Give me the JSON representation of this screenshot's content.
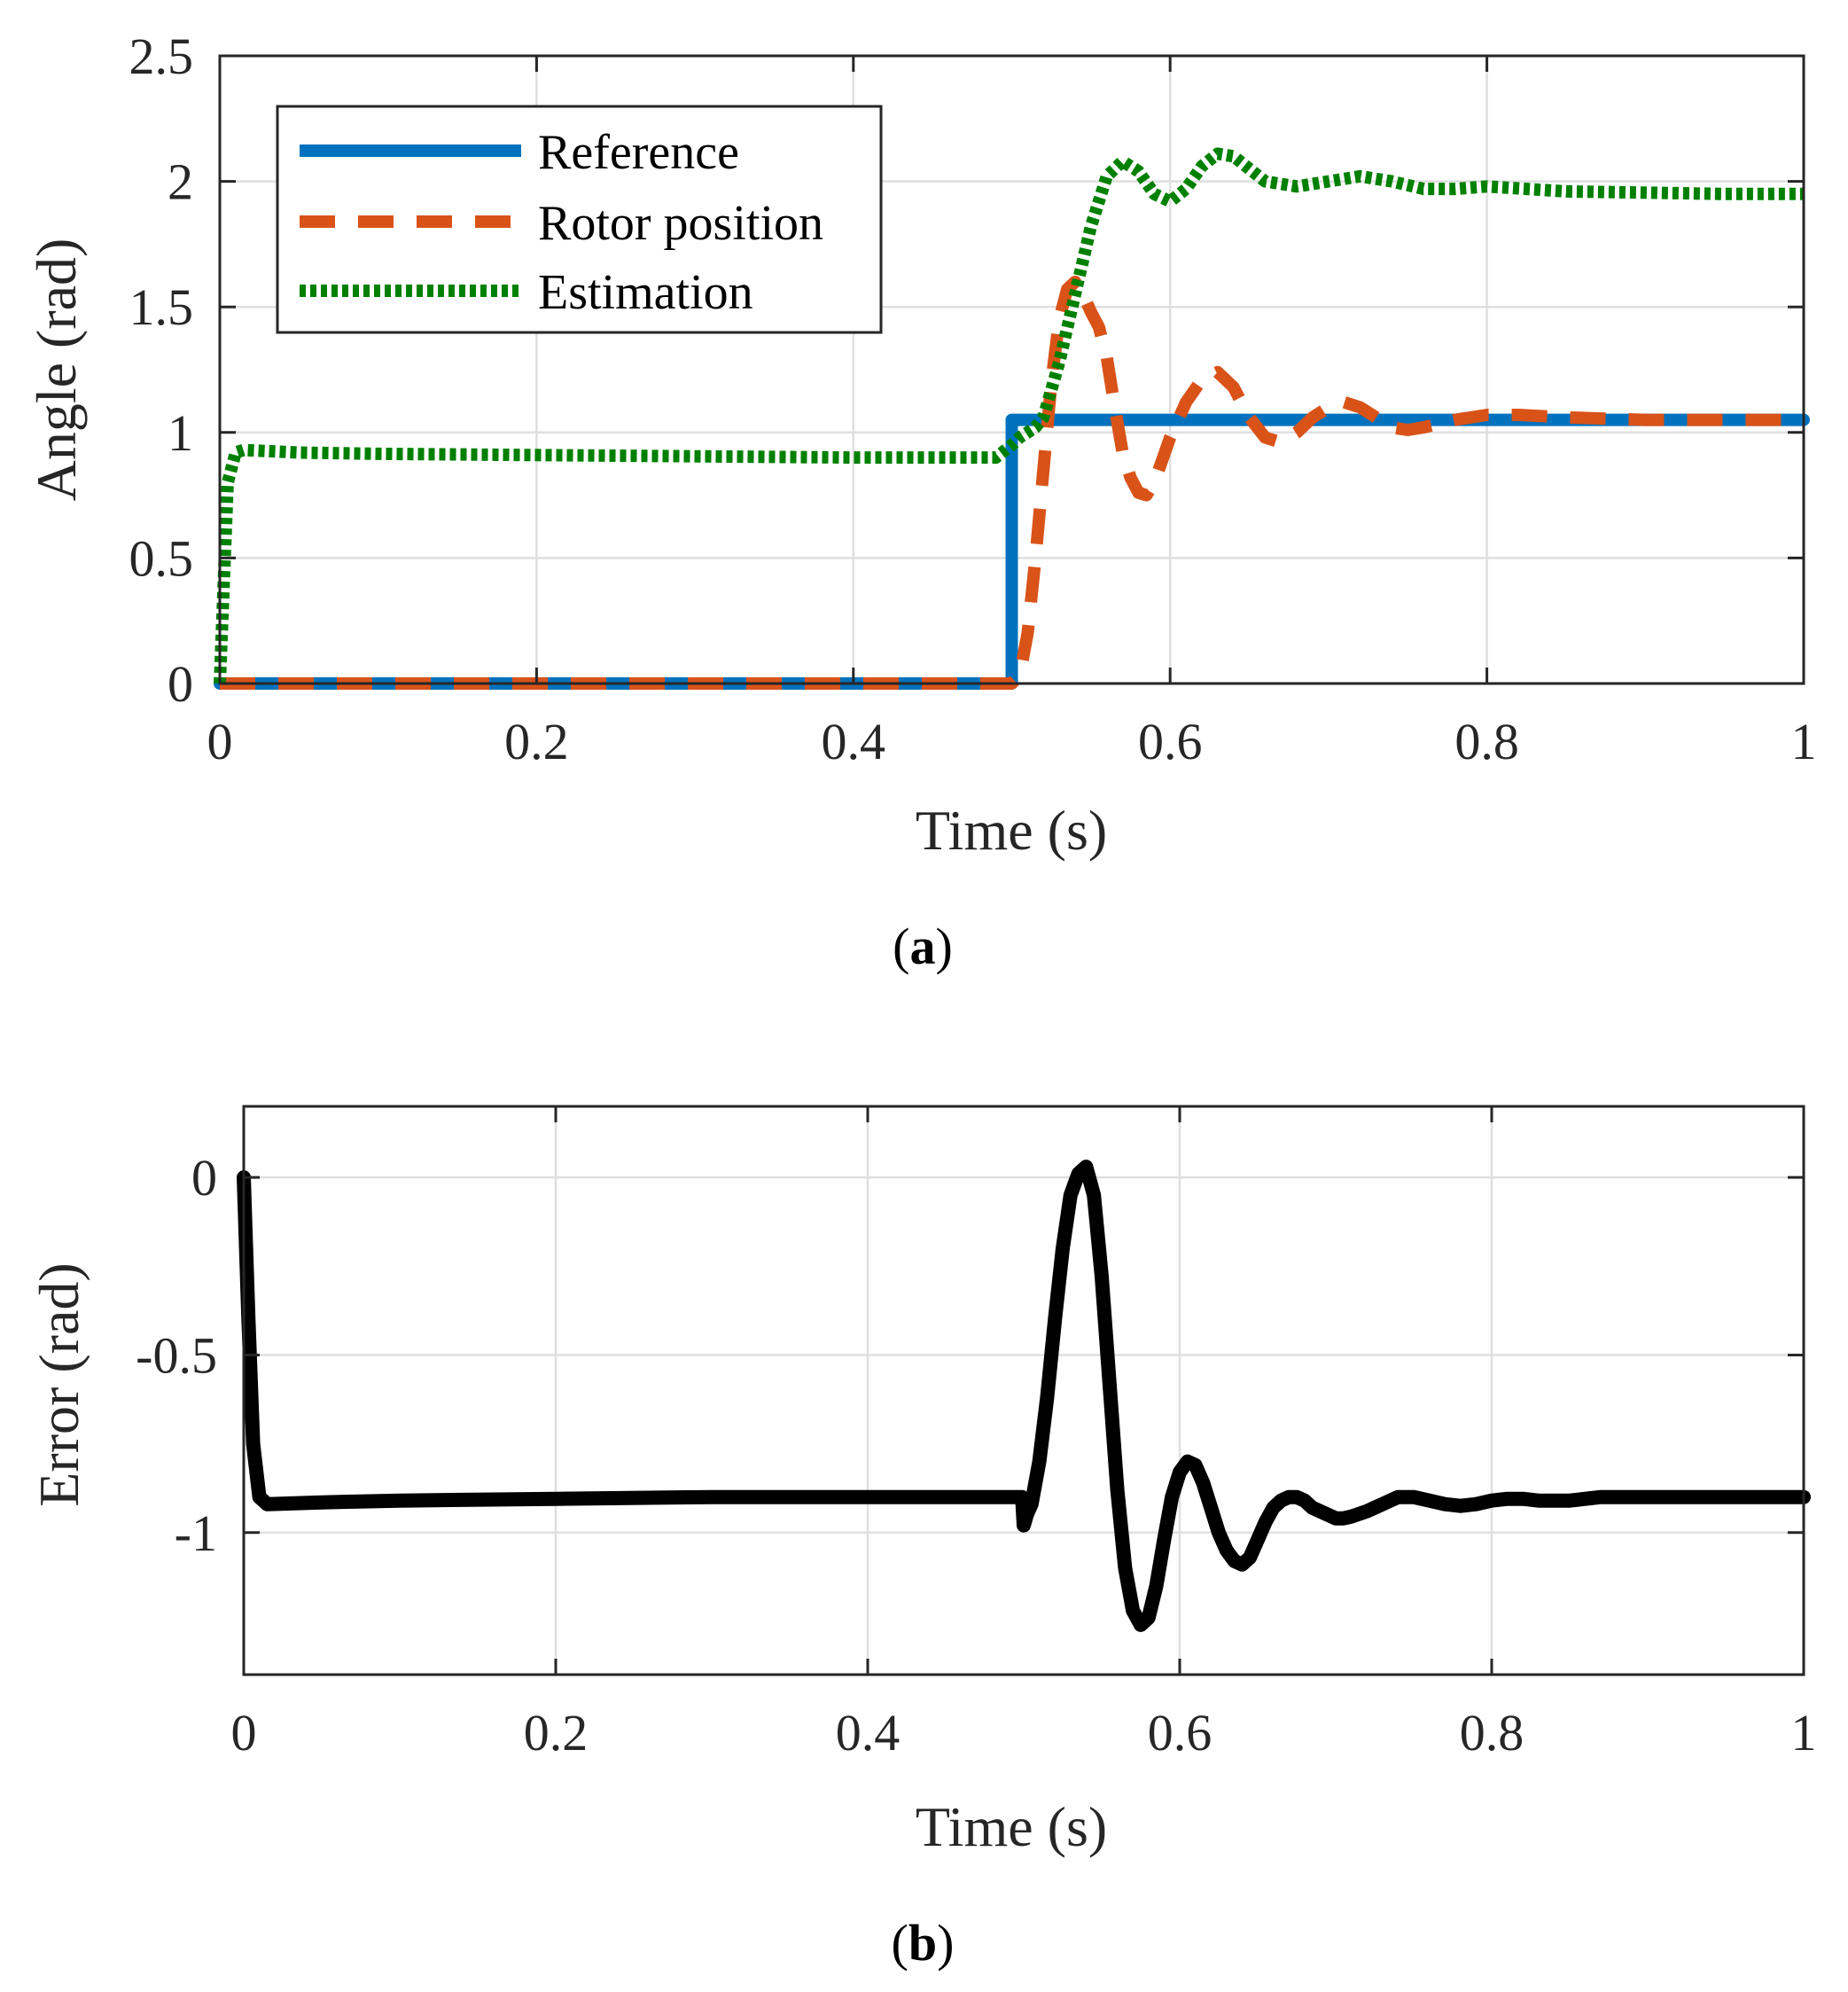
{
  "chart_data": [
    {
      "type": "line",
      "xlabel": "Time (s)",
      "ylabel": "Angle (rad)",
      "caption_letter": "a",
      "xlim": [
        0,
        1
      ],
      "ylim": [
        0,
        2.5
      ],
      "xticks": [
        0,
        0.2,
        0.4,
        0.6,
        0.8,
        1
      ],
      "xtick_labels": [
        "0",
        "0.2",
        "0.4",
        "0.6",
        "0.8",
        "1"
      ],
      "yticks": [
        0,
        0.5,
        1,
        1.5,
        2,
        2.5
      ],
      "ytick_labels": [
        "0",
        "0.5",
        "1",
        "1.5",
        "2",
        "2.5"
      ],
      "grid": true,
      "legend_position": "top-left",
      "series": [
        {
          "name": "Reference",
          "color": "#0072BD",
          "style": "solid",
          "x": [
            0,
            0.5,
            0.5,
            1.0
          ],
          "y": [
            0,
            0,
            1.05,
            1.05
          ]
        },
        {
          "name": "Rotor position",
          "color": "#D95319",
          "style": "dashed",
          "x": [
            0,
            0.5,
            0.505,
            0.51,
            0.515,
            0.52,
            0.525,
            0.53,
            0.535,
            0.54,
            0.545,
            0.55,
            0.555,
            0.56,
            0.565,
            0.57,
            0.575,
            0.58,
            0.585,
            0.59,
            0.6,
            0.61,
            0.62,
            0.63,
            0.64,
            0.65,
            0.66,
            0.67,
            0.68,
            0.69,
            0.7,
            0.71,
            0.72,
            0.73,
            0.74,
            0.75,
            0.76,
            0.78,
            0.8,
            0.82,
            0.85,
            0.9,
            0.95,
            1.0
          ],
          "y": [
            0,
            0,
            0.03,
            0.2,
            0.5,
            0.85,
            1.2,
            1.45,
            1.57,
            1.6,
            1.55,
            1.48,
            1.42,
            1.3,
            1.1,
            0.92,
            0.82,
            0.76,
            0.75,
            0.8,
            0.98,
            1.12,
            1.21,
            1.24,
            1.18,
            1.06,
            0.98,
            0.96,
            1.0,
            1.06,
            1.1,
            1.12,
            1.1,
            1.06,
            1.02,
            1.01,
            1.02,
            1.05,
            1.07,
            1.07,
            1.06,
            1.05,
            1.05,
            1.05
          ]
        },
        {
          "name": "Estimation",
          "color": "#008000",
          "style": "dotted",
          "x": [
            0,
            0.005,
            0.01,
            0.015,
            0.05,
            0.1,
            0.2,
            0.3,
            0.4,
            0.49,
            0.5,
            0.505,
            0.51,
            0.515,
            0.52,
            0.53,
            0.54,
            0.55,
            0.56,
            0.57,
            0.58,
            0.59,
            0.6,
            0.61,
            0.62,
            0.63,
            0.64,
            0.65,
            0.66,
            0.68,
            0.7,
            0.72,
            0.74,
            0.76,
            0.78,
            0.8,
            0.85,
            0.9,
            0.95,
            1.0
          ],
          "y": [
            0,
            0.8,
            0.92,
            0.93,
            0.92,
            0.915,
            0.91,
            0.905,
            0.9,
            0.9,
            0.95,
            0.98,
            1.0,
            1.02,
            1.06,
            1.28,
            1.55,
            1.82,
            2.02,
            2.08,
            2.04,
            1.95,
            1.92,
            1.97,
            2.06,
            2.11,
            2.1,
            2.05,
            2.0,
            1.98,
            2.0,
            2.02,
            2.0,
            1.97,
            1.97,
            1.98,
            1.96,
            1.955,
            1.95,
            1.95
          ]
        }
      ]
    },
    {
      "type": "line",
      "xlabel": "Time (s)",
      "ylabel": "Error (rad)",
      "caption_letter": "b",
      "xlim": [
        0,
        1
      ],
      "ylim": [
        -1.4,
        0.2
      ],
      "xticks": [
        0,
        0.2,
        0.4,
        0.6,
        0.8,
        1
      ],
      "xtick_labels": [
        "0",
        "0.2",
        "0.4",
        "0.6",
        "0.8",
        "1"
      ],
      "yticks": [
        -1,
        -0.5,
        0
      ],
      "ytick_labels": [
        "-1",
        "-0.5",
        "0"
      ],
      "grid": true,
      "series": [
        {
          "color": "#000000",
          "style": "solid",
          "x": [
            0,
            0.003,
            0.006,
            0.01,
            0.015,
            0.05,
            0.1,
            0.2,
            0.3,
            0.4,
            0.499,
            0.5,
            0.502,
            0.505,
            0.51,
            0.515,
            0.52,
            0.525,
            0.53,
            0.535,
            0.54,
            0.545,
            0.55,
            0.555,
            0.56,
            0.565,
            0.57,
            0.575,
            0.58,
            0.585,
            0.59,
            0.595,
            0.6,
            0.605,
            0.61,
            0.615,
            0.62,
            0.625,
            0.63,
            0.635,
            0.64,
            0.645,
            0.65,
            0.655,
            0.66,
            0.665,
            0.67,
            0.675,
            0.68,
            0.685,
            0.69,
            0.695,
            0.7,
            0.705,
            0.71,
            0.72,
            0.73,
            0.74,
            0.75,
            0.76,
            0.77,
            0.78,
            0.79,
            0.8,
            0.81,
            0.82,
            0.83,
            0.84,
            0.85,
            0.86,
            0.87,
            0.88,
            0.9,
            0.95,
            1.0
          ],
          "y": [
            0,
            -0.4,
            -0.75,
            -0.9,
            -0.92,
            -0.915,
            -0.91,
            -0.905,
            -0.9,
            -0.9,
            -0.9,
            -0.98,
            -0.95,
            -0.92,
            -0.8,
            -0.62,
            -0.4,
            -0.2,
            -0.05,
            0.01,
            0.03,
            -0.05,
            -0.28,
            -0.58,
            -0.88,
            -1.1,
            -1.22,
            -1.26,
            -1.24,
            -1.15,
            -1.02,
            -0.9,
            -0.83,
            -0.8,
            -0.81,
            -0.86,
            -0.93,
            -1.0,
            -1.05,
            -1.08,
            -1.09,
            -1.07,
            -1.02,
            -0.97,
            -0.93,
            -0.91,
            -0.9,
            -0.9,
            -0.91,
            -0.93,
            -0.94,
            -0.95,
            -0.96,
            -0.96,
            -0.955,
            -0.94,
            -0.92,
            -0.9,
            -0.9,
            -0.91,
            -0.92,
            -0.925,
            -0.92,
            -0.91,
            -0.905,
            -0.905,
            -0.91,
            -0.91,
            -0.91,
            -0.905,
            -0.9,
            -0.9,
            -0.9,
            -0.9,
            -0.9
          ]
        }
      ]
    }
  ]
}
